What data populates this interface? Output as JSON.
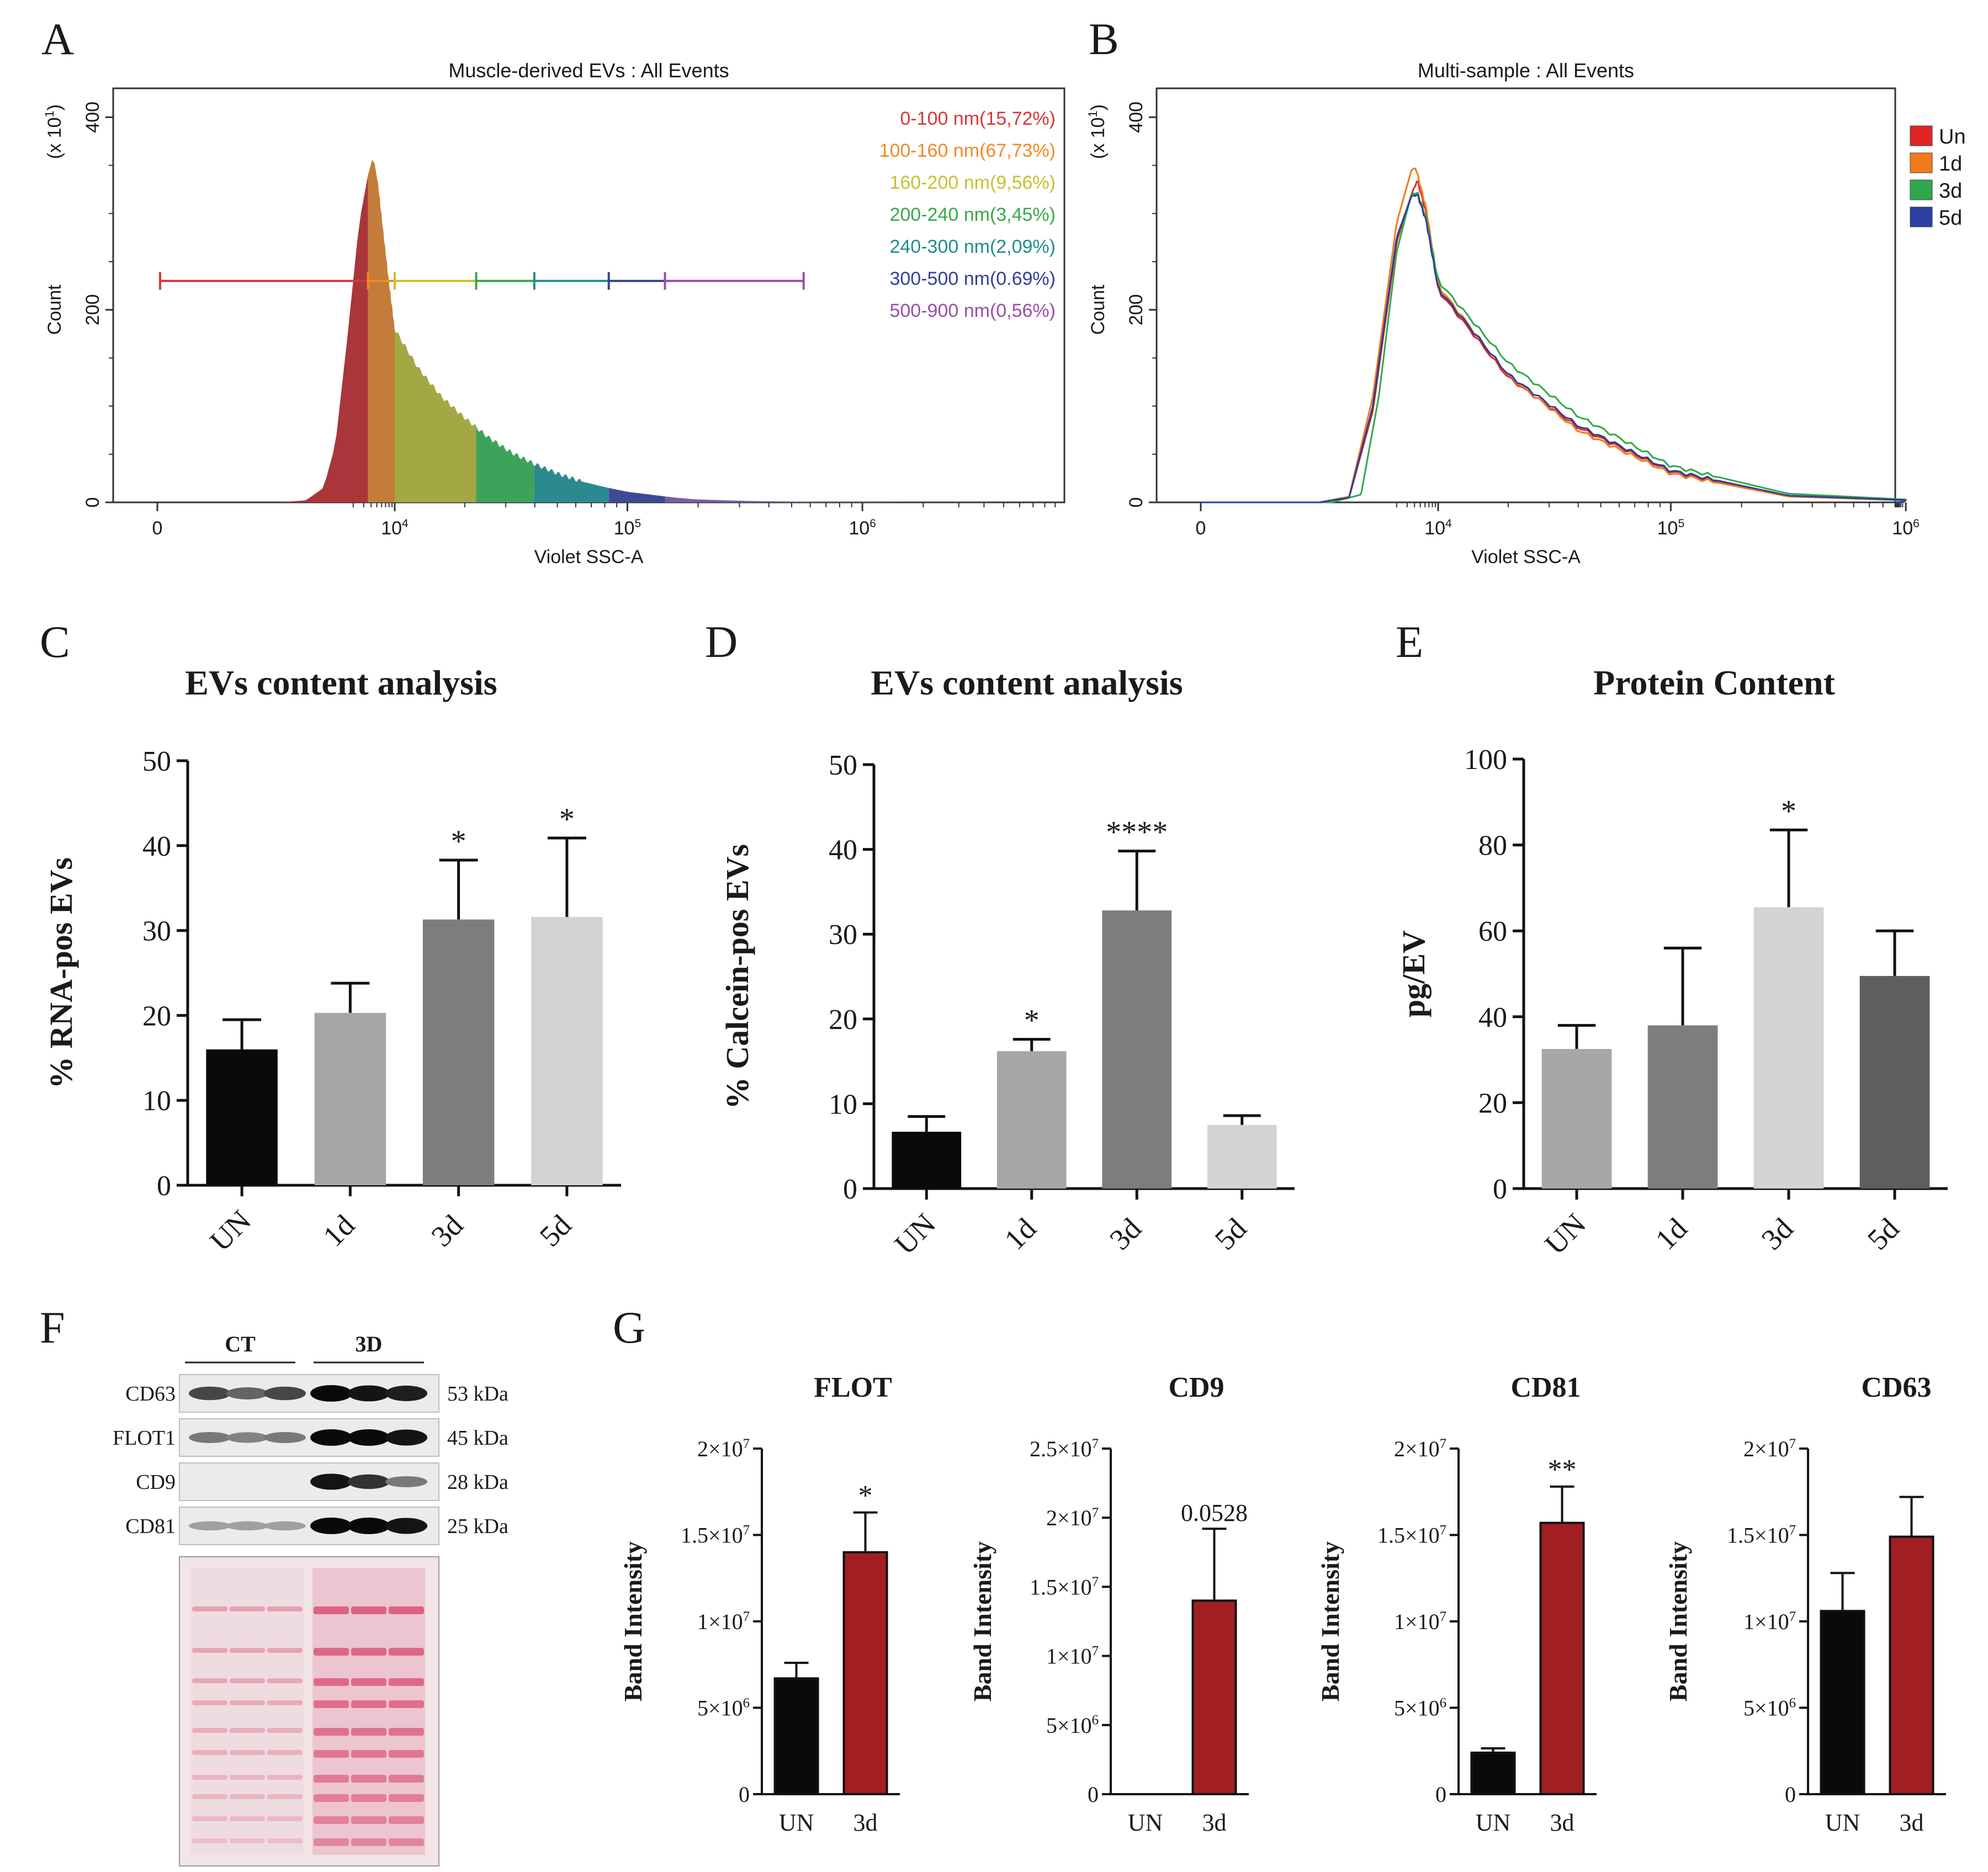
{
  "chart_data": [
    {
      "type": "area",
      "panel_letter": "A",
      "title": "Muscle-derived EVs : All Events",
      "xlabel": "Violet SSC-A",
      "ylabel": "Count",
      "y_multiplier": "(x 10",
      "y_multiplier_exp": "1",
      "y_multiplier_close": ")",
      "ylim": [
        0,
        430
      ],
      "y_ticks": [
        {
          "value": 0,
          "label": "0"
        },
        {
          "value": 200,
          "label": "200"
        },
        {
          "value": 400,
          "label": "400"
        }
      ],
      "x_ticks": [
        {
          "value": 0,
          "base": "0",
          "exp": ""
        },
        {
          "value": 4,
          "base": "10",
          "exp": "4"
        },
        {
          "value": 5,
          "base": "10",
          "exp": "5"
        },
        {
          "value": 6,
          "base": "10",
          "exp": "6"
        }
      ],
      "x_scale": "biexponential",
      "x_axis_points": [
        0,
        4,
        5,
        6,
        7
      ],
      "gate_y": 230,
      "gates": [
        {
          "label": "0-100 nm(15,72%)",
          "x0": 0.0,
          "x1": 3.55,
          "color": "#d8373a"
        },
        {
          "label": "100-160 nm(67,73%)",
          "x0": 3.55,
          "x1": 4.0,
          "color": "#f08a24"
        },
        {
          "label": "160-200 nm(9,56%)",
          "x0": 4.0,
          "x1": 4.35,
          "color": "#c8c030"
        },
        {
          "label": "200-240 nm(3,45%)",
          "x0": 4.35,
          "x1": 4.6,
          "color": "#3aa84a"
        },
        {
          "label": "240-300 nm(2,09%)",
          "x0": 4.6,
          "x1": 4.92,
          "color": "#1e8f8a"
        },
        {
          "label": "300-500 nm(0.69%)",
          "x0": 4.92,
          "x1": 5.16,
          "color": "#34409a"
        },
        {
          "label": "500-900 nm(0,56%)",
          "x0": 5.16,
          "x1": 5.75,
          "color": "#9a4ea8"
        }
      ],
      "fill_bands": [
        {
          "x0": 0.0,
          "x1": 3.55,
          "color": "#a9363a"
        },
        {
          "x0": 3.55,
          "x1": 4.0,
          "color": "#c37c3a"
        },
        {
          "x0": 4.0,
          "x1": 4.35,
          "color": "#a3a844"
        },
        {
          "x0": 4.35,
          "x1": 4.6,
          "color": "#3ea35a"
        },
        {
          "x0": 4.6,
          "x1": 4.92,
          "color": "#2b8a8f"
        },
        {
          "x0": 4.92,
          "x1": 5.16,
          "color": "#3f4a96"
        },
        {
          "x0": 5.16,
          "x1": 7.0,
          "color": "#7a5ea0"
        }
      ],
      "points": [
        [
          0.0,
          0
        ],
        [
          1.0,
          0
        ],
        [
          2.0,
          0
        ],
        [
          2.5,
          2
        ],
        [
          2.8,
          15
        ],
        [
          3.0,
          60
        ],
        [
          3.2,
          170
        ],
        [
          3.4,
          290
        ],
        [
          3.55,
          340
        ],
        [
          3.62,
          356
        ],
        [
          3.66,
          352
        ],
        [
          3.72,
          330
        ],
        [
          3.8,
          285
        ],
        [
          3.9,
          230
        ],
        [
          4.0,
          180
        ],
        [
          4.1,
          140
        ],
        [
          4.2,
          110
        ],
        [
          4.3,
          88
        ],
        [
          4.4,
          68
        ],
        [
          4.5,
          52
        ],
        [
          4.6,
          40
        ],
        [
          4.7,
          30
        ],
        [
          4.8,
          22
        ],
        [
          4.9,
          16
        ],
        [
          5.0,
          11
        ],
        [
          5.1,
          8
        ],
        [
          5.2,
          5
        ],
        [
          5.3,
          3
        ],
        [
          5.5,
          1.5
        ],
        [
          5.8,
          0.6
        ],
        [
          6.2,
          0.2
        ],
        [
          7.0,
          0
        ]
      ]
    },
    {
      "type": "line",
      "panel_letter": "B",
      "title": "Multi-sample : All Events",
      "xlabel": "Violet SSC-A",
      "ylabel": "Count",
      "y_multiplier": "(x 10",
      "y_multiplier_exp": "1",
      "y_multiplier_close": ")",
      "ylim": [
        0,
        430
      ],
      "y_ticks": [
        {
          "value": 0,
          "label": "0"
        },
        {
          "value": 200,
          "label": "200"
        },
        {
          "value": 400,
          "label": "400"
        }
      ],
      "x_ticks": [
        {
          "value": 0,
          "base": "0",
          "exp": ""
        },
        {
          "value": 4,
          "base": "10",
          "exp": "4"
        },
        {
          "value": 5,
          "base": "10",
          "exp": "5"
        },
        {
          "value": 6,
          "base": "10",
          "exp": "6"
        }
      ],
      "x_scale": "biexponential",
      "x_axis_points": [
        0,
        4,
        5,
        6,
        7
      ],
      "legend_position": "right",
      "series": [
        {
          "name": "Un",
          "color": "#e02424",
          "points": [
            [
              0,
              0
            ],
            [
              2.0,
              0
            ],
            [
              2.5,
              5
            ],
            [
              2.9,
              95
            ],
            [
              3.3,
              270
            ],
            [
              3.55,
              320
            ],
            [
              3.65,
              335
            ],
            [
              3.8,
              300
            ],
            [
              4.0,
              220
            ],
            [
              4.3,
              130
            ],
            [
              4.6,
              78
            ],
            [
              5.0,
              32
            ],
            [
              5.5,
              7
            ],
            [
              6.2,
              0.5
            ],
            [
              7,
              0
            ]
          ]
        },
        {
          "name": "1d",
          "color": "#f07a1a",
          "points": [
            [
              0,
              0
            ],
            [
              2.0,
              0
            ],
            [
              2.5,
              6
            ],
            [
              2.9,
              110
            ],
            [
              3.3,
              290
            ],
            [
              3.55,
              345
            ],
            [
              3.62,
              348
            ],
            [
              3.8,
              305
            ],
            [
              4.0,
              225
            ],
            [
              4.3,
              132
            ],
            [
              4.6,
              75
            ],
            [
              5.0,
              30
            ],
            [
              5.5,
              6
            ],
            [
              6.2,
              0.5
            ],
            [
              7,
              0
            ]
          ]
        },
        {
          "name": "3d",
          "color": "#2ea84a",
          "points": [
            [
              0,
              0
            ],
            [
              2.2,
              0
            ],
            [
              2.7,
              8
            ],
            [
              3.0,
              110
            ],
            [
              3.3,
              260
            ],
            [
              3.55,
              320
            ],
            [
              3.65,
              322
            ],
            [
              3.8,
              295
            ],
            [
              4.0,
              230
            ],
            [
              4.3,
              145
            ],
            [
              4.6,
              90
            ],
            [
              5.0,
              38
            ],
            [
              5.5,
              9
            ],
            [
              6.2,
              0.6
            ],
            [
              7,
              0
            ]
          ]
        },
        {
          "name": "5d",
          "color": "#2b3f9e",
          "points": [
            [
              0,
              0
            ],
            [
              2.0,
              0
            ],
            [
              2.5,
              5
            ],
            [
              2.9,
              100
            ],
            [
              3.3,
              275
            ],
            [
              3.55,
              318
            ],
            [
              3.65,
              320
            ],
            [
              3.8,
              292
            ],
            [
              4.0,
              222
            ],
            [
              4.3,
              133
            ],
            [
              4.6,
              80
            ],
            [
              5.0,
              33
            ],
            [
              5.5,
              7
            ],
            [
              6.2,
              0.5
            ],
            [
              7,
              0
            ]
          ]
        }
      ]
    },
    {
      "type": "bar",
      "panel_letter": "C",
      "title": "EVs content analysis",
      "ylabel": "% RNA-pos EVs",
      "xlabel": "",
      "categories": [
        "UN",
        "1d",
        "3d",
        "5d"
      ],
      "values": [
        16,
        20.3,
        31.3,
        31.6
      ],
      "errors": [
        3.5,
        3.5,
        7,
        9.3
      ],
      "significance": [
        "",
        "",
        "*",
        "*"
      ],
      "colors": [
        "#0a0a0a",
        "#a5a6a8",
        "#7d7d7f",
        "#d3d3d3"
      ],
      "ylim": [
        0,
        50
      ],
      "y_ticks": [
        {
          "value": 0,
          "label": "0"
        },
        {
          "value": 10,
          "label": "10"
        },
        {
          "value": 20,
          "label": "20"
        },
        {
          "value": 30,
          "label": "30"
        },
        {
          "value": 40,
          "label": "40"
        },
        {
          "value": 50,
          "label": "50"
        }
      ]
    },
    {
      "type": "bar",
      "panel_letter": "D",
      "title": "EVs content analysis",
      "ylabel": "% Calcein-pos EVs",
      "xlabel": "",
      "categories": [
        "UN",
        "1d",
        "3d",
        "5d"
      ],
      "values": [
        6.7,
        16.2,
        32.8,
        7.5
      ],
      "errors": [
        1.8,
        1.4,
        7,
        1.1
      ],
      "significance": [
        "",
        "*",
        "****",
        ""
      ],
      "colors": [
        "#0a0a0a",
        "#a5a6a8",
        "#7d7d7f",
        "#d3d3d3"
      ],
      "ylim": [
        0,
        50
      ],
      "y_ticks": [
        {
          "value": 0,
          "label": "0"
        },
        {
          "value": 10,
          "label": "10"
        },
        {
          "value": 20,
          "label": "20"
        },
        {
          "value": 30,
          "label": "30"
        },
        {
          "value": 40,
          "label": "40"
        },
        {
          "value": 50,
          "label": "50"
        }
      ]
    },
    {
      "type": "bar",
      "panel_letter": "E",
      "title": "Protein  Content",
      "ylabel": "pg/EV",
      "xlabel": "",
      "categories": [
        "UN",
        "1d",
        "3d",
        "5d"
      ],
      "values": [
        32.5,
        38,
        65.5,
        49.5
      ],
      "errors": [
        5.5,
        18,
        18,
        10.5
      ],
      "significance": [
        "",
        "",
        "*",
        ""
      ],
      "colors": [
        "#a5a6a8",
        "#7d7d7f",
        "#d3d3d3",
        "#5e5e60"
      ],
      "ylim": [
        0,
        100
      ],
      "y_ticks": [
        {
          "value": 0,
          "label": "0"
        },
        {
          "value": 20,
          "label": "20"
        },
        {
          "value": 40,
          "label": "40"
        },
        {
          "value": 60,
          "label": "60"
        },
        {
          "value": 80,
          "label": "80"
        },
        {
          "value": 100,
          "label": "100"
        }
      ]
    },
    {
      "type": "bar",
      "panel_letter": "G",
      "title": "FLOT",
      "ylabel": "Band Intensity",
      "categories": [
        "UN",
        "3d"
      ],
      "values": [
        6700000,
        14000000
      ],
      "errors": [
        900000,
        2300000
      ],
      "significance": [
        "",
        "*"
      ],
      "colors": [
        "#0a0a0a",
        "#a11f23"
      ],
      "ylim": [
        0,
        20000000
      ],
      "y_ticks": [
        {
          "value": 0,
          "base": "0",
          "exp": ""
        },
        {
          "value": 5000000,
          "base": "5×10",
          "exp": "6"
        },
        {
          "value": 10000000,
          "base": "1×10",
          "exp": "7"
        },
        {
          "value": 15000000,
          "base": "1.5×10",
          "exp": "7"
        },
        {
          "value": 20000000,
          "base": "2×10",
          "exp": "7"
        }
      ]
    },
    {
      "type": "bar",
      "title": "CD9",
      "ylabel": "Band Intensity",
      "categories": [
        "UN",
        "3d"
      ],
      "values": [
        0,
        14000000
      ],
      "errors": [
        0,
        5200000
      ],
      "significance": [
        "",
        "0.0528"
      ],
      "colors": [
        "#0a0a0a",
        "#a11f23"
      ],
      "ylim": [
        0,
        25000000
      ],
      "y_ticks": [
        {
          "value": 0,
          "base": "0",
          "exp": ""
        },
        {
          "value": 5000000,
          "base": "5×10",
          "exp": "6"
        },
        {
          "value": 10000000,
          "base": "1×10",
          "exp": "7"
        },
        {
          "value": 15000000,
          "base": "1.5×10",
          "exp": "7"
        },
        {
          "value": 20000000,
          "base": "2×10",
          "exp": "7"
        },
        {
          "value": 25000000,
          "base": "2.5×10",
          "exp": "7"
        }
      ]
    },
    {
      "type": "bar",
      "title": "CD81",
      "ylabel": "Band Intensity",
      "categories": [
        "UN",
        "3d"
      ],
      "values": [
        2400000,
        15700000
      ],
      "errors": [
        250000,
        2100000
      ],
      "significance": [
        "",
        "**"
      ],
      "colors": [
        "#0a0a0a",
        "#a11f23"
      ],
      "ylim": [
        0,
        20000000
      ],
      "y_ticks": [
        {
          "value": 0,
          "base": "0",
          "exp": ""
        },
        {
          "value": 5000000,
          "base": "5×10",
          "exp": "6"
        },
        {
          "value": 10000000,
          "base": "1×10",
          "exp": "7"
        },
        {
          "value": 15000000,
          "base": "1.5×10",
          "exp": "7"
        },
        {
          "value": 20000000,
          "base": "2×10",
          "exp": "7"
        }
      ]
    },
    {
      "type": "bar",
      "title": "CD63",
      "ylabel": "Band Intensity",
      "categories": [
        "UN",
        "3d"
      ],
      "values": [
        10600000,
        14900000
      ],
      "errors": [
        2200000,
        2300000
      ],
      "significance": [
        "",
        ""
      ],
      "colors": [
        "#0a0a0a",
        "#a11f23"
      ],
      "ylim": [
        0,
        20000000
      ],
      "y_ticks": [
        {
          "value": 0,
          "base": "0",
          "exp": ""
        },
        {
          "value": 5000000,
          "base": "5×10",
          "exp": "6"
        },
        {
          "value": 10000000,
          "base": "1×10",
          "exp": "7"
        },
        {
          "value": 15000000,
          "base": "1.5×10",
          "exp": "7"
        },
        {
          "value": 20000000,
          "base": "2×10",
          "exp": "7"
        }
      ]
    }
  ],
  "western_blot": {
    "panel_letter": "F",
    "groups": [
      "CT",
      "3D"
    ],
    "bands": [
      {
        "name": "CD63",
        "size": "53 kDa",
        "intensity": [
          0.7,
          0.55,
          0.7,
          1.0,
          0.95,
          0.9
        ]
      },
      {
        "name": "FLOT1",
        "size": "45 kDa",
        "intensity": [
          0.45,
          0.4,
          0.45,
          1.0,
          1.0,
          0.95
        ]
      },
      {
        "name": "CD9",
        "size": "28 kDa",
        "intensity": [
          0,
          0,
          0,
          0.95,
          0.8,
          0.45
        ]
      },
      {
        "name": "CD81",
        "size": "25 kDa",
        "intensity": [
          0.25,
          0.25,
          0.25,
          1.0,
          1.0,
          0.95
        ]
      }
    ],
    "stain_description": "Ponceau S total protein",
    "stain_colors": {
      "background": "#f1e4e6",
      "band": "#d8406a"
    }
  }
}
